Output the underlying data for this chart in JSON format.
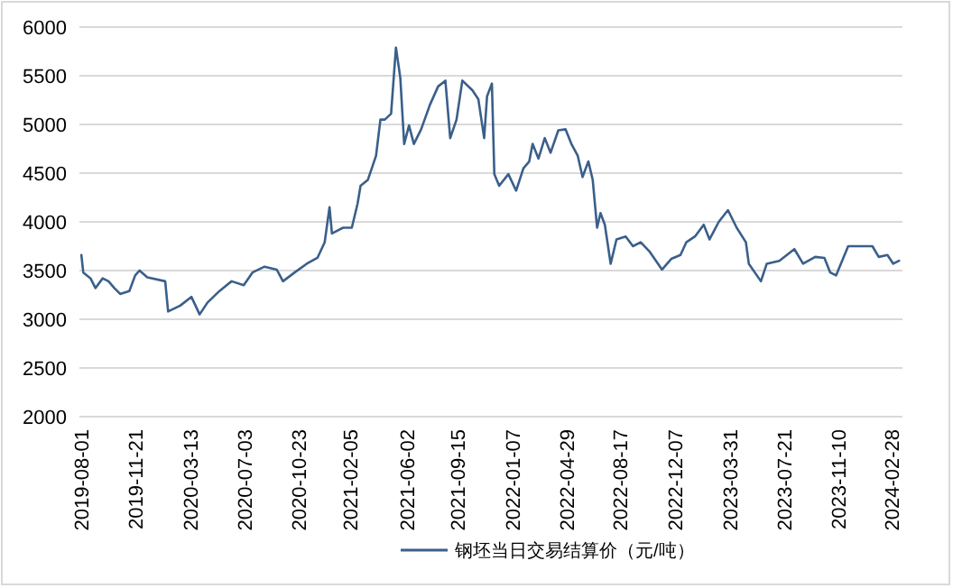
{
  "chart_data": {
    "type": "line",
    "xlim": [
      "2019-07-28",
      "2024-03-21"
    ],
    "ylim": [
      2000,
      6000
    ],
    "yticks": [
      2000,
      2500,
      3000,
      3500,
      4000,
      4500,
      5000,
      5500,
      6000
    ],
    "xticks": [
      "2019-08-01",
      "2019-11-21",
      "2020-03-13",
      "2020-07-03",
      "2020-10-23",
      "2021-02-05",
      "2021-06-02",
      "2021-09-15",
      "2022-01-07",
      "2022-04-29",
      "2022-08-17",
      "2022-12-07",
      "2023-03-31",
      "2023-07-21",
      "2023-11-10",
      "2024-02-28"
    ],
    "grid": "y",
    "legend": "bottom",
    "line_style": "solid",
    "marker": "none",
    "series": [
      {
        "name": "钢坯当日交易结算价（元/吨）",
        "color": "#3a5f8a",
        "x": [
          "2019-08-01",
          "2019-08-05",
          "2019-08-20",
          "2019-08-30",
          "2019-09-14",
          "2019-09-26",
          "2019-10-08",
          "2019-10-20",
          "2019-11-08",
          "2019-11-20",
          "2019-11-29",
          "2019-12-15",
          "2020-01-21",
          "2020-01-27",
          "2020-02-21",
          "2020-03-15",
          "2020-04-01",
          "2020-04-17",
          "2020-05-12",
          "2020-06-06",
          "2020-07-01",
          "2020-07-19",
          "2020-08-13",
          "2020-09-07",
          "2020-09-20",
          "2020-10-14",
          "2020-11-08",
          "2020-11-30",
          "2020-12-15",
          "2020-12-25",
          "2020-12-30",
          "2021-01-22",
          "2021-02-09",
          "2021-02-21",
          "2021-02-27",
          "2021-03-14",
          "2021-03-31",
          "2021-04-09",
          "2021-04-18",
          "2021-05-01",
          "2021-05-11",
          "2021-05-20",
          "2021-05-28",
          "2021-06-07",
          "2021-06-17",
          "2021-07-02",
          "2021-07-20",
          "2021-08-06",
          "2021-08-21",
          "2021-08-31",
          "2021-09-13",
          "2021-09-25",
          "2021-10-16",
          "2021-10-28",
          "2021-11-09",
          "2021-11-15",
          "2021-11-25",
          "2021-11-28",
          "2021-11-30",
          "2021-12-10",
          "2021-12-29",
          "2022-01-14",
          "2022-01-29",
          "2022-02-10",
          "2022-02-17",
          "2022-03-01",
          "2022-03-14",
          "2022-03-26",
          "2022-04-11",
          "2022-04-26",
          "2022-05-08",
          "2022-05-21",
          "2022-05-31",
          "2022-06-12",
          "2022-06-21",
          "2022-06-30",
          "2022-07-07",
          "2022-07-16",
          "2022-07-28",
          "2022-08-09",
          "2022-08-28",
          "2022-09-12",
          "2022-09-28",
          "2022-10-17",
          "2022-11-11",
          "2022-11-30",
          "2022-12-19",
          "2022-12-31",
          "2023-01-18",
          "2023-02-05",
          "2023-02-17",
          "2023-03-08",
          "2023-03-27",
          "2023-04-14",
          "2023-05-03",
          "2023-05-09",
          "2023-06-03",
          "2023-06-15",
          "2023-07-11",
          "2023-08-11",
          "2023-08-29",
          "2023-09-23",
          "2023-10-12",
          "2023-10-24",
          "2023-11-05",
          "2023-11-30",
          "2023-12-25",
          "2024-01-19",
          "2024-02-01",
          "2024-02-19",
          "2024-03-02",
          "2024-03-14"
        ],
        "values": [
          3660,
          3480,
          3420,
          3320,
          3420,
          3390,
          3320,
          3260,
          3290,
          3450,
          3500,
          3430,
          3390,
          3080,
          3140,
          3230,
          3050,
          3170,
          3290,
          3390,
          3350,
          3480,
          3540,
          3510,
          3390,
          3480,
          3570,
          3630,
          3790,
          4150,
          3880,
          3940,
          3940,
          4190,
          4370,
          4430,
          4680,
          5050,
          5050,
          5110,
          5790,
          5480,
          4800,
          4990,
          4800,
          4950,
          5200,
          5390,
          5450,
          4860,
          5050,
          5450,
          5350,
          5260,
          4860,
          5290,
          5420,
          4860,
          4490,
          4370,
          4490,
          4320,
          4550,
          4620,
          4800,
          4650,
          4860,
          4710,
          4940,
          4950,
          4800,
          4680,
          4460,
          4620,
          4430,
          3940,
          4090,
          3970,
          3570,
          3820,
          3850,
          3750,
          3790,
          3690,
          3510,
          3620,
          3660,
          3790,
          3850,
          3970,
          3820,
          4000,
          4120,
          3940,
          3790,
          3570,
          3390,
          3570,
          3600,
          3720,
          3570,
          3640,
          3630,
          3480,
          3450,
          3750,
          3750,
          3750,
          3640,
          3660,
          3570,
          3600
        ]
      }
    ]
  }
}
